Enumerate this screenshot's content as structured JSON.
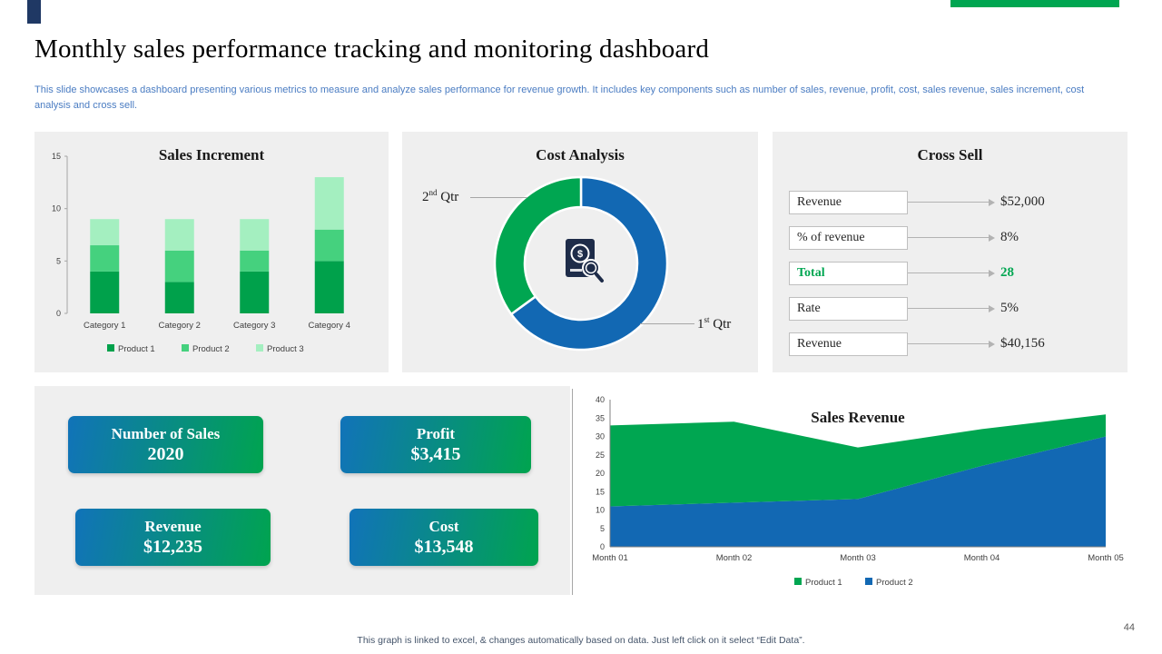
{
  "page": {
    "title": "Monthly sales performance tracking and monitoring dashboard",
    "subtitle": "This slide showcases a dashboard presenting various metrics to measure and analyze sales performance for revenue growth. It includes key components such as number of sales, revenue, profit, cost, sales revenue, sales increment, cost analysis and cross sell.",
    "footer": "This graph is linked to excel, & changes automatically based on data. Just left click on it select “Edit Data”.",
    "page_number": "44"
  },
  "colors": {
    "green": "#00A651",
    "blue": "#1268B3",
    "navy": "#1F3864",
    "panel_bg": "#EFEFEF",
    "subtitle_blue": "#4A7CC2"
  },
  "cost_analysis": {
    "callout_left": {
      "base": "2",
      "sup": "nd",
      "rest": " Qtr"
    },
    "callout_right": {
      "base": "1",
      "sup": "st",
      "rest": " Qtr"
    }
  },
  "cross_sell": {
    "title": "Cross Sell",
    "rows": [
      {
        "label": "Revenue",
        "value": "$52,000",
        "highlight": false
      },
      {
        "label": "% of revenue",
        "value": "8%",
        "highlight": false
      },
      {
        "label": "Total",
        "value": "28",
        "highlight": true
      },
      {
        "label": "Rate",
        "value": "5%",
        "highlight": false
      },
      {
        "label": "Revenue",
        "value": "$40,156",
        "highlight": false
      }
    ]
  },
  "kpis": [
    {
      "label": "Number of Sales",
      "value": "2020"
    },
    {
      "label": "Profit",
      "value": "$3,415"
    },
    {
      "label": "Revenue",
      "value": "$12,235"
    },
    {
      "label": "Cost",
      "value": "$13,548"
    }
  ],
  "chart_data": [
    {
      "type": "bar",
      "title": "Sales Increment",
      "categories": [
        "Category 1",
        "Category 2",
        "Category 3",
        "Category 4"
      ],
      "series": [
        {
          "name": "Product 1",
          "color": "#00A14B",
          "values": [
            4,
            3,
            4,
            5
          ]
        },
        {
          "name": "Product 2",
          "color": "#45D17E",
          "values": [
            2.5,
            3,
            2,
            3
          ]
        },
        {
          "name": "Product 3",
          "color": "#A4EFC0",
          "values": [
            2.5,
            3,
            3,
            5
          ]
        }
      ],
      "stacked": true,
      "ylim": [
        0,
        15
      ],
      "yticks": [
        0,
        5,
        10,
        15
      ],
      "legend_position": "bottom"
    },
    {
      "type": "pie",
      "title": "Cost Analysis",
      "donut": true,
      "slices": [
        {
          "label": "1st Qtr",
          "value": 65,
          "color": "#1268B3"
        },
        {
          "label": "2nd Qtr",
          "value": 35,
          "color": "#00A651"
        }
      ]
    },
    {
      "type": "area",
      "title": "Sales Revenue",
      "x": [
        "Month 01",
        "Month 02",
        "Month 03",
        "Month 04",
        "Month 05"
      ],
      "series": [
        {
          "name": "Product 2",
          "color": "#1268B3",
          "values": [
            11,
            12,
            13,
            22,
            30
          ]
        },
        {
          "name": "Product 1",
          "color": "#00A651",
          "values": [
            22,
            22,
            14,
            10,
            6
          ]
        }
      ],
      "stacked": true,
      "ylim": [
        0,
        40
      ],
      "yticks": [
        0,
        5,
        10,
        15,
        20,
        25,
        30,
        35,
        40
      ],
      "legend": [
        {
          "name": "Product 1",
          "color": "#00A651"
        },
        {
          "name": "Product 2",
          "color": "#1268B3"
        }
      ],
      "legend_position": "bottom"
    }
  ]
}
